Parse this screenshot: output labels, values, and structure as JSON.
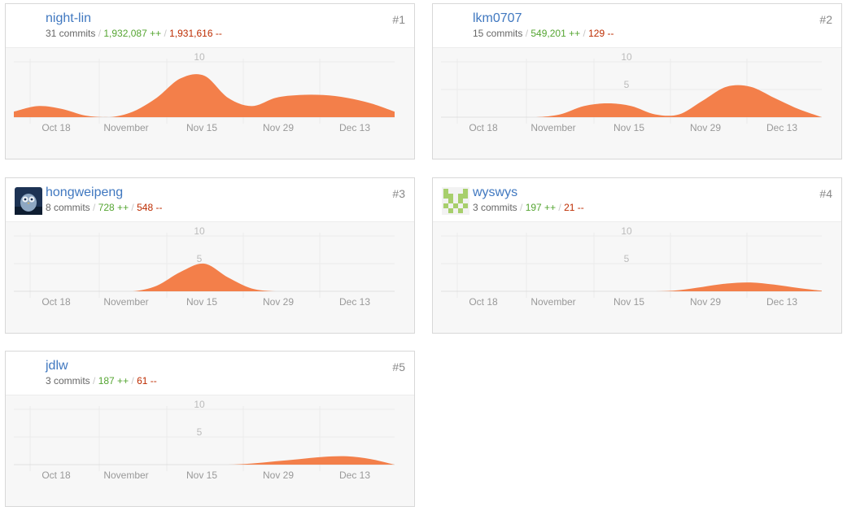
{
  "chart_data": [
    {
      "type": "area",
      "rank": "#1",
      "login": "night-lin",
      "commits": "31 commits",
      "additions": "1,932,087 ++",
      "deletions": "1,931,616 --",
      "yticks": [
        "10"
      ],
      "ylim": [
        0,
        10
      ],
      "x_ticks": [
        "Oct 18",
        "November",
        "Nov 15",
        "Nov 29",
        "Dec 13"
      ],
      "values": [
        1,
        2,
        1.5,
        0.3,
        0,
        1,
        3.5,
        7,
        7.5,
        3.5,
        2,
        3.5,
        4,
        4,
        3.5,
        2.5,
        1
      ]
    },
    {
      "type": "area",
      "rank": "#2",
      "login": "lkm0707",
      "commits": "15 commits",
      "additions": "549,201 ++",
      "deletions": "129 --",
      "yticks": [
        "10",
        "5"
      ],
      "ylim": [
        0,
        10
      ],
      "x_ticks": [
        "Oct 18",
        "November",
        "Nov 15",
        "Nov 29",
        "Dec 13"
      ],
      "values": [
        0,
        0,
        0,
        0,
        0,
        0.5,
        2,
        2.5,
        2,
        0.5,
        0.5,
        3,
        5.5,
        5.5,
        3.5,
        1.5,
        0
      ]
    },
    {
      "type": "area",
      "rank": "#3",
      "login": "hongweipeng",
      "commits": "8 commits",
      "additions": "728 ++",
      "deletions": "548 --",
      "yticks": [
        "10",
        "5"
      ],
      "ylim": [
        0,
        10
      ],
      "x_ticks": [
        "Oct 18",
        "November",
        "Nov 15",
        "Nov 29",
        "Dec 13"
      ],
      "values": [
        0,
        0,
        0,
        0,
        0,
        0,
        1,
        3.5,
        5,
        2.5,
        0.5,
        0,
        0,
        0,
        0,
        0,
        0
      ]
    },
    {
      "type": "area",
      "rank": "#4",
      "login": "wyswys",
      "commits": "3 commits",
      "additions": "197 ++",
      "deletions": "21 --",
      "yticks": [
        "10",
        "5"
      ],
      "ylim": [
        0,
        10
      ],
      "x_ticks": [
        "Oct 18",
        "November",
        "Nov 15",
        "Nov 29",
        "Dec 13"
      ],
      "values": [
        0,
        0,
        0,
        0,
        0,
        0,
        0,
        0,
        0,
        0,
        0.2,
        0.8,
        1.4,
        1.6,
        1.2,
        0.6,
        0.1
      ]
    },
    {
      "type": "area",
      "rank": "#5",
      "login": "jdlw",
      "commits": "3 commits",
      "additions": "187 ++",
      "deletions": "61 --",
      "yticks": [
        "10",
        "5"
      ],
      "ylim": [
        0,
        10
      ],
      "x_ticks": [
        "Oct 18",
        "November",
        "Nov 15",
        "Nov 29",
        "Dec 13"
      ],
      "values": [
        0,
        0,
        0,
        0,
        0,
        0,
        0,
        0,
        0,
        0,
        0.2,
        0.6,
        1,
        1.4,
        1.5,
        1,
        0
      ]
    }
  ],
  "colors": {
    "area": "#f37f4a",
    "link": "#4078c0",
    "additions": "#55a532",
    "deletions": "#bd2c00"
  },
  "avatars": [
    "blank",
    "blank",
    "owl-photo",
    "green-identicon",
    "blank"
  ]
}
